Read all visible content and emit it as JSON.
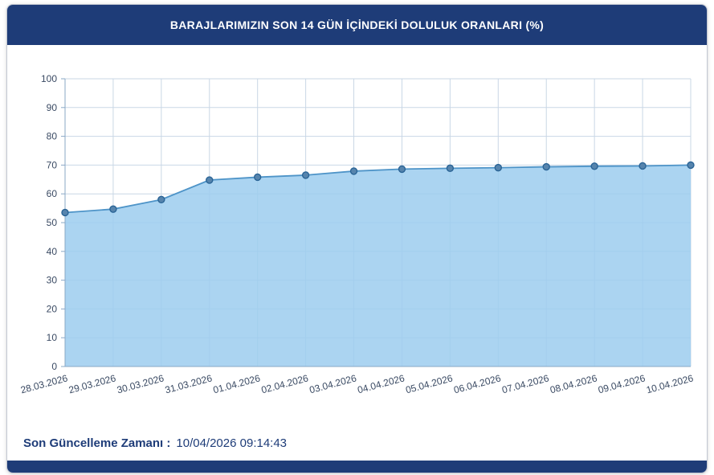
{
  "header": {
    "title": "BARAJLARIMIZIN SON 14 GÜN İÇİNDEKİ DOLULUK ORANLARI (%)",
    "bg_color": "#1e3c78",
    "text_color": "#ffffff"
  },
  "chart_data": {
    "type": "area",
    "title": "BARAJLARIMIZIN SON 14 GÜN İÇİNDEKİ DOLULUK ORANLARI (%)",
    "categories": [
      "28.03.2026",
      "29.03.2026",
      "30.03.2026",
      "31.03.2026",
      "01.04.2026",
      "02.04.2026",
      "03.04.2026",
      "04.04.2026",
      "05.04.2026",
      "06.04.2026",
      "07.04.2026",
      "08.04.2026",
      "09.04.2026",
      "10.04.2026"
    ],
    "values": [
      53.5,
      54.7,
      58,
      64.8,
      65.8,
      66.5,
      67.9,
      68.6,
      68.9,
      69.1,
      69.4,
      69.6,
      69.7,
      70
    ],
    "xlabel": "",
    "ylabel": "",
    "ylim": [
      0,
      100
    ],
    "ytick_step": 10,
    "grid": true,
    "legend": false,
    "marker": "circle",
    "x_label_rotation_deg": -15,
    "colors": {
      "area_fill": "#9ccdef",
      "line": "#4e94c8",
      "marker_fill": "#5684ad",
      "marker_stroke": "#2a6496",
      "grid": "#c9d7e6",
      "axis": "#8aa8c6",
      "tick_text": "#3a4a63"
    }
  },
  "footer": {
    "label": "Son Güncelleme Zamanı :",
    "value": "10/04/2026 09:14:43",
    "text_color": "#1e3c78"
  }
}
